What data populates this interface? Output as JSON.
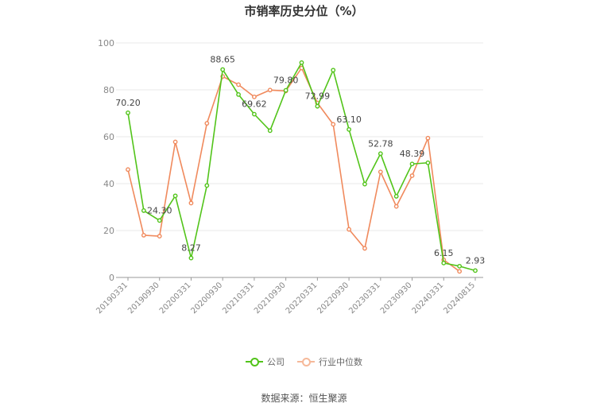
{
  "chart_data": {
    "type": "line",
    "title": "市销率历史分位（%）",
    "categories": [
      "20190331",
      "20190630",
      "20190930",
      "20191231",
      "20200331",
      "20200630",
      "20200930",
      "20201231",
      "20210331",
      "20210630",
      "20210930",
      "20211231",
      "20220331",
      "20220630",
      "20220930",
      "20221231",
      "20230331",
      "20230630",
      "20230930",
      "20231231",
      "20240331",
      "20240630",
      "20240815"
    ],
    "x_tick_labels": [
      "20190331",
      "20190930",
      "20200331",
      "20200930",
      "20210331",
      "20210930",
      "20220331",
      "20220930",
      "20230331",
      "20230930",
      "20240331",
      "20240815"
    ],
    "ylim": [
      0,
      100
    ],
    "yticks": [
      0,
      20,
      40,
      60,
      80,
      100
    ],
    "grid": true,
    "legend_position": "bottom",
    "series": [
      {
        "name": "公司",
        "color": "#52c41a",
        "values": [
          70.2,
          28.5,
          24.3,
          34.8,
          8.27,
          39.2,
          88.65,
          78.0,
          69.62,
          62.6,
          79.8,
          91.6,
          72.99,
          88.4,
          63.1,
          39.8,
          52.78,
          34.6,
          48.39,
          48.9,
          6.15,
          4.8,
          2.93
        ],
        "labels": {
          "0": "70.20",
          "2": "24.30",
          "4": "8.27",
          "6": "88.65",
          "8": "69.62",
          "10": "79.80",
          "12": "72.99",
          "14": "63.10",
          "16": "52.78",
          "18": "48.39",
          "20": "6.15",
          "22": "2.93"
        }
      },
      {
        "name": "行业中位数",
        "color": "#f08a5d",
        "values": [
          46.0,
          18.0,
          17.6,
          57.8,
          31.7,
          65.7,
          85.7,
          82.2,
          77.0,
          79.9,
          79.5,
          89.3,
          74.4,
          65.3,
          20.5,
          12.4,
          45.0,
          30.3,
          43.4,
          59.4,
          7.5,
          2.6,
          null
        ]
      }
    ]
  },
  "legend": {
    "company_label": "公司",
    "industry_label": "行业中位数"
  },
  "source": "数据来源：恒生聚源"
}
